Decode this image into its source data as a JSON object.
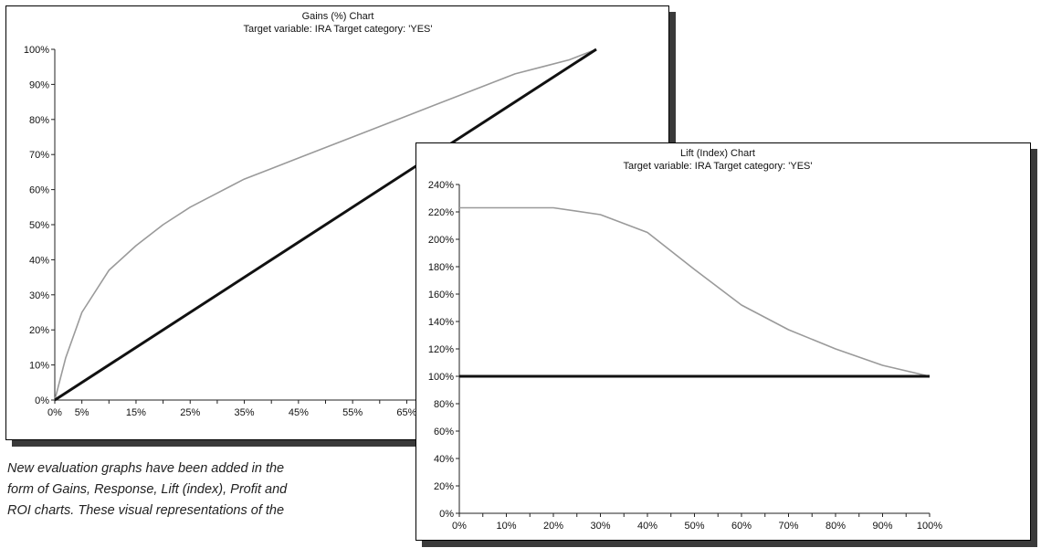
{
  "chart_data": [
    {
      "type": "line",
      "title": "Gains (%) Chart",
      "subtitle": "Target variable:  IRA   Target category:  'YES'",
      "xlabel": "",
      "ylabel": "",
      "x_ticks": [
        "0%",
        "5%",
        "15%",
        "25%",
        "35%",
        "45%",
        "55%",
        "65%"
      ],
      "y_ticks": [
        "0%",
        "10%",
        "20%",
        "30%",
        "40%",
        "50%",
        "60%",
        "70%",
        "80%",
        "90%",
        "100%"
      ],
      "xlim": [
        0,
        100
      ],
      "ylim": [
        0,
        100
      ],
      "series": [
        {
          "color": "#9a9a9a",
          "x": [
            0,
            2,
            5,
            10,
            15,
            20,
            25,
            30,
            35,
            40,
            45,
            50,
            55,
            60,
            65,
            70,
            75,
            80,
            85,
            90,
            95,
            100
          ],
          "values": [
            0,
            12,
            25,
            37,
            44,
            50,
            55,
            59,
            63,
            66,
            69,
            72,
            75,
            78,
            81,
            84,
            87,
            90,
            93,
            95,
            97,
            100
          ]
        },
        {
          "color": "#111111",
          "x": [
            0,
            100
          ],
          "values": [
            0,
            100
          ]
        }
      ]
    },
    {
      "type": "line",
      "title": "Lift (Index) Chart",
      "subtitle": "Target variable:  IRA   Target category:  'YES'",
      "xlabel": "",
      "ylabel": "",
      "x_ticks": [
        "0%",
        "10%",
        "20%",
        "30%",
        "40%",
        "50%",
        "60%",
        "70%",
        "80%",
        "90%",
        "100%"
      ],
      "y_ticks": [
        "0%",
        "20%",
        "40%",
        "60%",
        "80%",
        "100%",
        "120%",
        "140%",
        "160%",
        "180%",
        "200%",
        "220%",
        "240%"
      ],
      "xlim": [
        0,
        100
      ],
      "ylim": [
        0,
        240
      ],
      "series": [
        {
          "color": "#9a9a9a",
          "x": [
            0,
            10,
            20,
            30,
            40,
            50,
            60,
            70,
            80,
            90,
            100
          ],
          "values": [
            223,
            223,
            223,
            218,
            205,
            178,
            152,
            134,
            120,
            108,
            100
          ]
        },
        {
          "color": "#111111",
          "x": [
            0,
            100
          ],
          "values": [
            100,
            100
          ]
        }
      ]
    }
  ],
  "caption": [
    "New evaluation graphs have been added in the",
    "form of Gains, Response, Lift (index), Profit and",
    "ROI charts. These visual representations of the"
  ]
}
